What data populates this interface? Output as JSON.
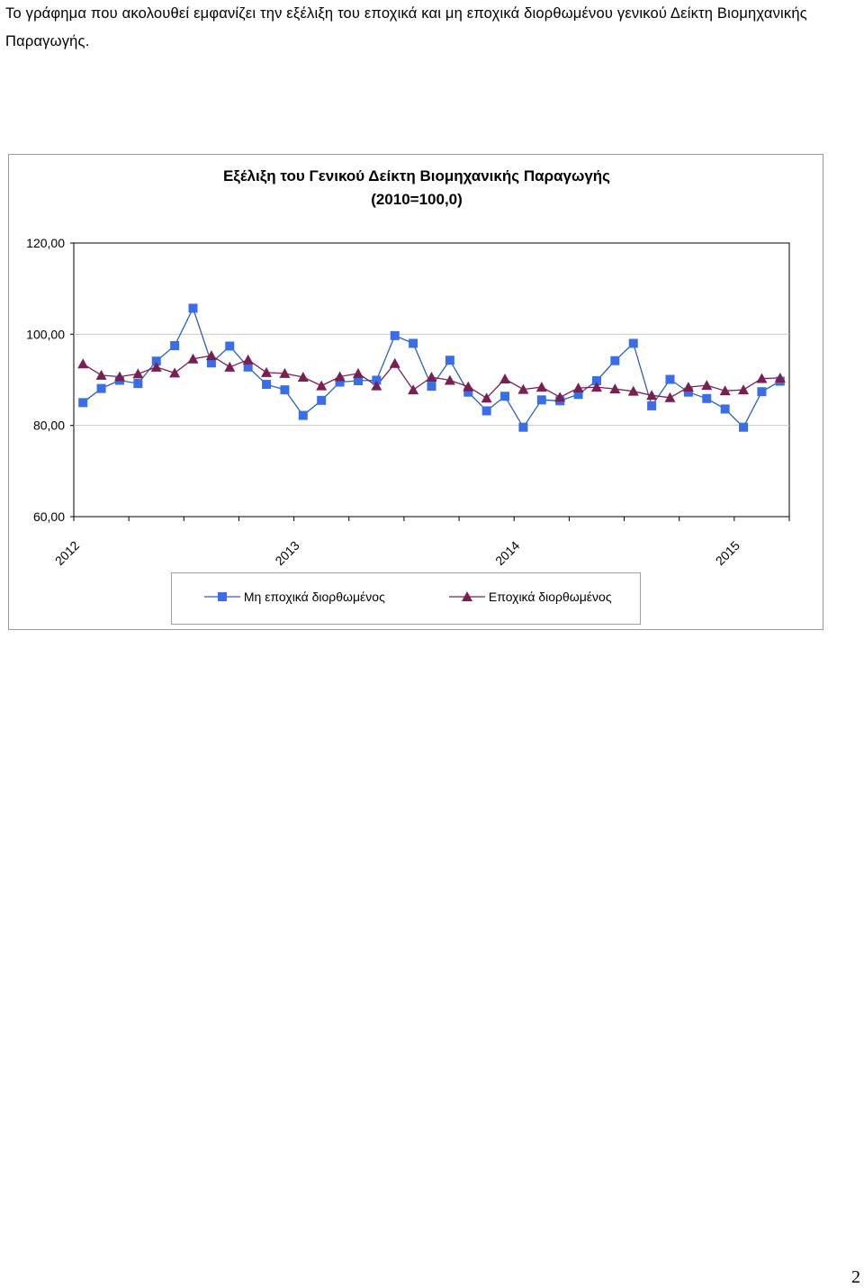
{
  "intro_text": "Το γράφημα που ακολουθεί εμφανίζει την εξέλιξη του εποχικά και μη εποχικά διορθωμένου γενικού Δείκτη Βιομηχανικής Παραγωγής.",
  "page_number": "2",
  "colors": {
    "non_seasonal": "#3a6ee8",
    "seasonal": "#7a1f52",
    "non_seasonal_line": "#2a5fc0"
  },
  "chart_data": {
    "type": "line",
    "title": "Εξέλιξη του Γενικού Δείκτη Βιομηχανικής Παραγωγής",
    "subtitle": "(2010=100,0)",
    "xlabel": "",
    "ylabel": "",
    "ylim": [
      60,
      120
    ],
    "y_ticks": [
      "60,00",
      "80,00",
      "100,00",
      "120,00"
    ],
    "x_tick_labels": [
      "2012",
      "2013",
      "2014",
      "2015"
    ],
    "x_tick_positions": [
      0,
      12,
      24,
      36
    ],
    "grid": "horizontal",
    "legend_position": "bottom",
    "series": [
      {
        "name": "Μη εποχικά διορθωμένος",
        "marker": "square",
        "values": [
          85.0,
          88.1,
          89.9,
          89.2,
          94.1,
          97.5,
          105.7,
          93.7,
          97.4,
          92.8,
          89.0,
          87.8,
          82.2,
          85.5,
          89.5,
          89.8,
          89.9,
          99.7,
          98.0,
          88.6,
          94.3,
          87.3,
          83.2,
          86.4,
          79.6,
          85.6,
          85.4,
          86.8,
          89.8,
          94.2,
          98.0,
          84.3,
          90.1,
          87.3,
          85.9,
          83.6,
          79.6,
          87.4,
          89.7
        ]
      },
      {
        "name": "Εποχικά διορθωμένος",
        "marker": "triangle",
        "values": [
          93.5,
          91.0,
          90.7,
          91.3,
          92.8,
          91.5,
          94.6,
          95.3,
          92.8,
          94.4,
          91.6,
          91.4,
          90.6,
          88.7,
          90.7,
          91.4,
          88.7,
          93.6,
          87.8,
          90.6,
          89.9,
          88.5,
          86.0,
          90.2,
          87.9,
          88.4,
          86.2,
          88.2,
          88.4,
          88.0,
          87.5,
          86.6,
          86.1,
          88.4,
          88.8,
          87.6,
          87.8,
          90.3,
          90.4
        ]
      }
    ]
  }
}
